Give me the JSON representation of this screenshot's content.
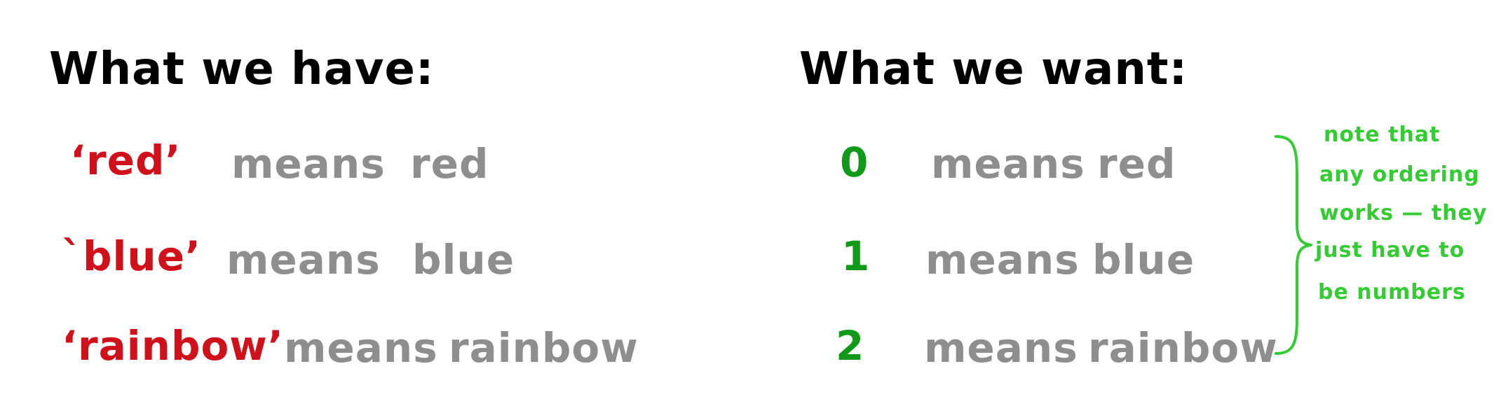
{
  "left": {
    "heading": "What we have:",
    "rows": [
      {
        "key": "‘red’",
        "means": "means",
        "value": "red"
      },
      {
        "key": "`blue’",
        "means": "means",
        "value": "blue"
      },
      {
        "key": "‘rainbow’",
        "means": "means",
        "value": "rainbow"
      }
    ]
  },
  "right": {
    "heading": "What we want:",
    "rows": [
      {
        "key": "0",
        "means": "means",
        "value": "red"
      },
      {
        "key": "1",
        "means": "means",
        "value": "blue"
      },
      {
        "key": "2",
        "means": "means",
        "value": "rainbow"
      }
    ]
  },
  "note": {
    "lines": [
      "note that",
      "any ordering",
      "works — they",
      "just have to",
      "be numbers"
    ]
  },
  "colors": {
    "heading": "#000000",
    "string_key": "#d0101a",
    "number_key": "#119a1a",
    "explanation": "#8e8e8e",
    "note": "#33cc33"
  }
}
